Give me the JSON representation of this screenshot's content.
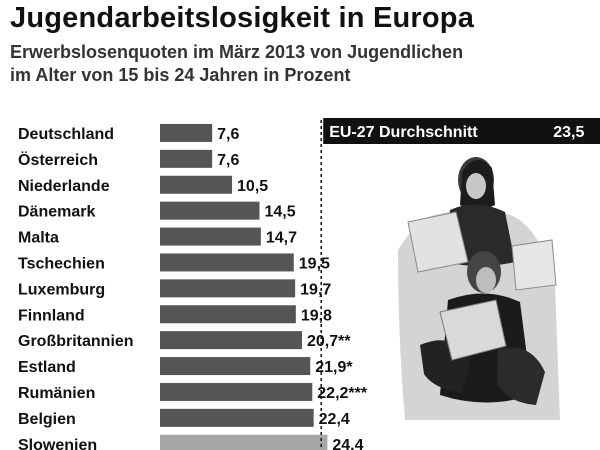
{
  "chart_data": {
    "type": "bar",
    "orientation": "horizontal",
    "title": "Jugendarbeitslosigkeit in Europa",
    "subtitle_lines": [
      "Erwerbslosenquoten im März 2013 von Jugendlichen",
      "im Alter von 15 bis 24 Jahren in Prozent"
    ],
    "categories": [
      "Deutschland",
      "Österreich",
      "Niederlande",
      "Dänemark",
      "Malta",
      "Tschechien",
      "Luxemburg",
      "Finnland",
      "Großbritannien",
      "Estland",
      "Rumänien",
      "Belgien",
      "Slowenien"
    ],
    "values": [
      7.6,
      7.6,
      10.5,
      14.5,
      14.7,
      19.5,
      19.7,
      19.8,
      20.7,
      21.9,
      22.2,
      22.4,
      24.4
    ],
    "value_labels": [
      "7,6",
      "7,6",
      "10,5",
      "14,5",
      "14,7",
      "19,5",
      "19,7",
      "19,8",
      "20,7**",
      "21,9*",
      "22,2***",
      "22,4",
      "24,4"
    ],
    "reference_line": {
      "label": "EU-27 Durchschnitt",
      "value": 23.5,
      "value_label": "23,5"
    },
    "colors": {
      "bar": "#555555",
      "bar_highlight": "#a6a6a6",
      "reference_box": "#111111"
    }
  }
}
